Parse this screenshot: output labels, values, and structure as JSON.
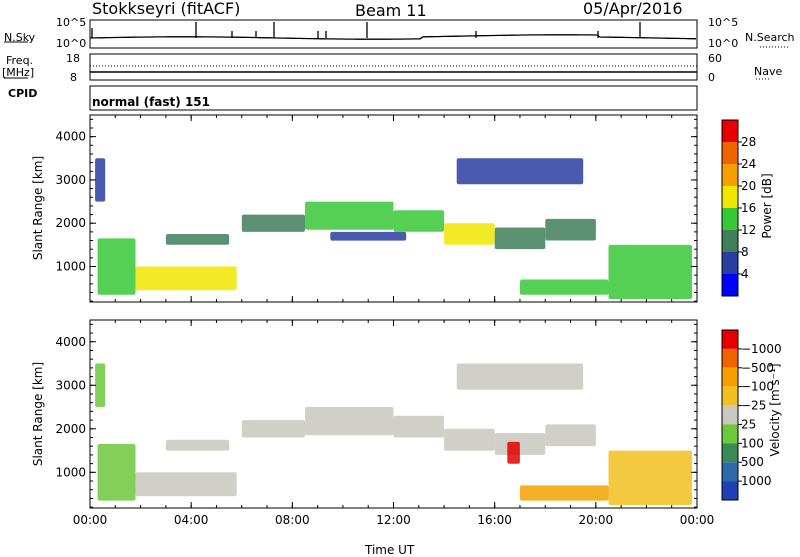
{
  "header": {
    "station": "Stokkseyri (fitACF)",
    "beam": "Beam 11",
    "date": "05/Apr/2016"
  },
  "top_panels": {
    "nsky_label": "N.Sky",
    "nsearch_label": "N.Search",
    "noise_tick_high": "10^5",
    "noise_tick_low": "10^0",
    "freq_label": "Freq.",
    "freq_unit": "[MHz]",
    "freq_tick_high": "18",
    "freq_tick_low": "8",
    "nave_label": "Nave",
    "nave_tick_high": "60",
    "nave_tick_low": "0",
    "cpid_label": "CPID",
    "cpid_value": "normal (fast) 151"
  },
  "chart_data": [
    {
      "type": "heatmap",
      "panel": "power",
      "ylabel": "Slant Range [km]",
      "ylim": [
        180,
        4500
      ],
      "yticks": [
        1000,
        2000,
        3000,
        4000
      ],
      "xlim_hours": [
        0,
        24
      ],
      "xticks": [
        "00:00",
        "04:00",
        "08:00",
        "12:00",
        "16:00",
        "20:00",
        "00:00"
      ],
      "colorbar_label": "Power [dB]",
      "colorbar_ticks": [
        "4",
        "8",
        "12",
        "16",
        "20",
        "24",
        "28"
      ],
      "colors": [
        "#0000ff",
        "#2a3da0",
        "#3f7f5a",
        "#37c837",
        "#f0e600",
        "#f5a000",
        "#f06400",
        "#e60000"
      ],
      "regions": [
        {
          "t0": 0.3,
          "t1": 1.8,
          "r0": 350,
          "r1": 1650,
          "level": 3
        },
        {
          "t0": 1.8,
          "t1": 5.8,
          "r0": 450,
          "r1": 1000,
          "level": 4
        },
        {
          "t0": 3.0,
          "t1": 5.5,
          "r0": 1500,
          "r1": 1750,
          "level": 2
        },
        {
          "t0": 6.0,
          "t1": 8.5,
          "r0": 1800,
          "r1": 2200,
          "level": 2
        },
        {
          "t0": 8.5,
          "t1": 12.0,
          "r0": 1850,
          "r1": 2500,
          "level": 3
        },
        {
          "t0": 12.0,
          "t1": 14.0,
          "r0": 1800,
          "r1": 2300,
          "level": 3
        },
        {
          "t0": 14.0,
          "t1": 16.0,
          "r0": 1500,
          "r1": 2000,
          "level": 4
        },
        {
          "t0": 16.0,
          "t1": 18.0,
          "r0": 1400,
          "r1": 1900,
          "level": 2
        },
        {
          "t0": 18.0,
          "t1": 20.0,
          "r0": 1600,
          "r1": 2100,
          "level": 2
        },
        {
          "t0": 14.5,
          "t1": 19.5,
          "r0": 2900,
          "r1": 3500,
          "level": 1
        },
        {
          "t0": 17.0,
          "t1": 20.5,
          "r0": 350,
          "r1": 700,
          "level": 3
        },
        {
          "t0": 20.5,
          "t1": 23.8,
          "r0": 250,
          "r1": 1500,
          "level": 3
        },
        {
          "t0": 0.2,
          "t1": 0.6,
          "r0": 2500,
          "r1": 3500,
          "level": 1
        },
        {
          "t0": 9.5,
          "t1": 12.5,
          "r0": 1600,
          "r1": 1800,
          "level": 1
        }
      ]
    },
    {
      "type": "heatmap",
      "panel": "velocity",
      "ylabel": "Slant Range [km]",
      "ylim": [
        180,
        4500
      ],
      "yticks": [
        1000,
        2000,
        3000,
        4000
      ],
      "xlim_hours": [
        0,
        24
      ],
      "xticks": [
        "00:00",
        "04:00",
        "08:00",
        "12:00",
        "16:00",
        "20:00",
        "00:00"
      ],
      "xlabel": "Time UT",
      "colorbar_label": "Velocity [m s⁻¹]",
      "colorbar_ticks": [
        "1000",
        "500",
        "100",
        "25",
        "−25",
        "−100",
        "−500",
        "−1000"
      ],
      "colors": [
        "#1f3fb4",
        "#2e6aa8",
        "#3a8a55",
        "#6cc83c",
        "#c8c8c0",
        "#f0c020",
        "#f5a000",
        "#f06400",
        "#e60000"
      ],
      "regions": [
        {
          "t0": 0.3,
          "t1": 1.8,
          "r0": 350,
          "r1": 1650,
          "level": 3
        },
        {
          "t0": 1.8,
          "t1": 5.8,
          "r0": 450,
          "r1": 1000,
          "level": 4
        },
        {
          "t0": 3.0,
          "t1": 5.5,
          "r0": 1500,
          "r1": 1750,
          "level": 4
        },
        {
          "t0": 6.0,
          "t1": 8.5,
          "r0": 1800,
          "r1": 2200,
          "level": 4
        },
        {
          "t0": 8.5,
          "t1": 12.0,
          "r0": 1850,
          "r1": 2500,
          "level": 4
        },
        {
          "t0": 12.0,
          "t1": 14.0,
          "r0": 1800,
          "r1": 2300,
          "level": 4
        },
        {
          "t0": 14.0,
          "t1": 16.0,
          "r0": 1500,
          "r1": 2000,
          "level": 4
        },
        {
          "t0": 16.0,
          "t1": 18.0,
          "r0": 1400,
          "r1": 1900,
          "level": 4
        },
        {
          "t0": 18.0,
          "t1": 20.0,
          "r0": 1600,
          "r1": 2100,
          "level": 4
        },
        {
          "t0": 14.5,
          "t1": 19.5,
          "r0": 2900,
          "r1": 3500,
          "level": 4
        },
        {
          "t0": 17.0,
          "t1": 20.5,
          "r0": 350,
          "r1": 700,
          "level": 6
        },
        {
          "t0": 20.5,
          "t1": 23.8,
          "r0": 250,
          "r1": 1500,
          "level": 5
        },
        {
          "t0": 16.5,
          "t1": 17.0,
          "r0": 1200,
          "r1": 1700,
          "level": 8
        },
        {
          "t0": 0.2,
          "t1": 0.6,
          "r0": 2500,
          "r1": 3500,
          "level": 3
        }
      ]
    }
  ]
}
